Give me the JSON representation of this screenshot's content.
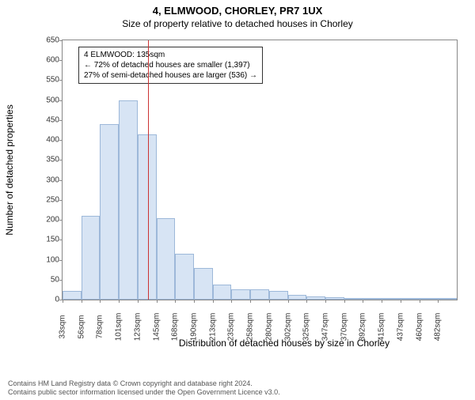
{
  "titles": {
    "main": "4, ELMWOOD, CHORLEY, PR7 1UX",
    "sub": "Size of property relative to detached houses in Chorley"
  },
  "chart": {
    "type": "histogram",
    "ylabel": "Number of detached properties",
    "xlabel": "Distribution of detached houses by size in Chorley",
    "ylim": [
      0,
      650
    ],
    "ytick_step": 50,
    "plot_background": "#ffffff",
    "border_color": "#888888",
    "bar_fill": "#d7e4f4",
    "bar_border": "#9db8d9",
    "marker_color": "#cc3333",
    "marker_x_bin_index": 4.55,
    "xtick_labels": [
      "33sqm",
      "56sqm",
      "78sqm",
      "101sqm",
      "123sqm",
      "145sqm",
      "168sqm",
      "190sqm",
      "213sqm",
      "235sqm",
      "258sqm",
      "280sqm",
      "302sqm",
      "325sqm",
      "347sqm",
      "370sqm",
      "392sqm",
      "415sqm",
      "437sqm",
      "460sqm",
      "482sqm"
    ],
    "bar_values": [
      22,
      210,
      440,
      500,
      415,
      205,
      115,
      80,
      38,
      25,
      25,
      22,
      12,
      8,
      5,
      4,
      2,
      3,
      2,
      2,
      2
    ]
  },
  "annotation": {
    "line1": "4 ELMWOOD: 135sqm",
    "line2": "← 72% of detached houses are smaller (1,397)",
    "line3": "27% of semi-detached houses are larger (536) →"
  },
  "footer": {
    "line1": "Contains HM Land Registry data © Crown copyright and database right 2024.",
    "line2": "Contains public sector information licensed under the Open Government Licence v3.0."
  },
  "fonts": {
    "title_main_size": 13,
    "title_sub_size": 12,
    "axis_label_size": 12,
    "tick_size": 10,
    "annotation_size": 10,
    "footer_size": 9
  }
}
